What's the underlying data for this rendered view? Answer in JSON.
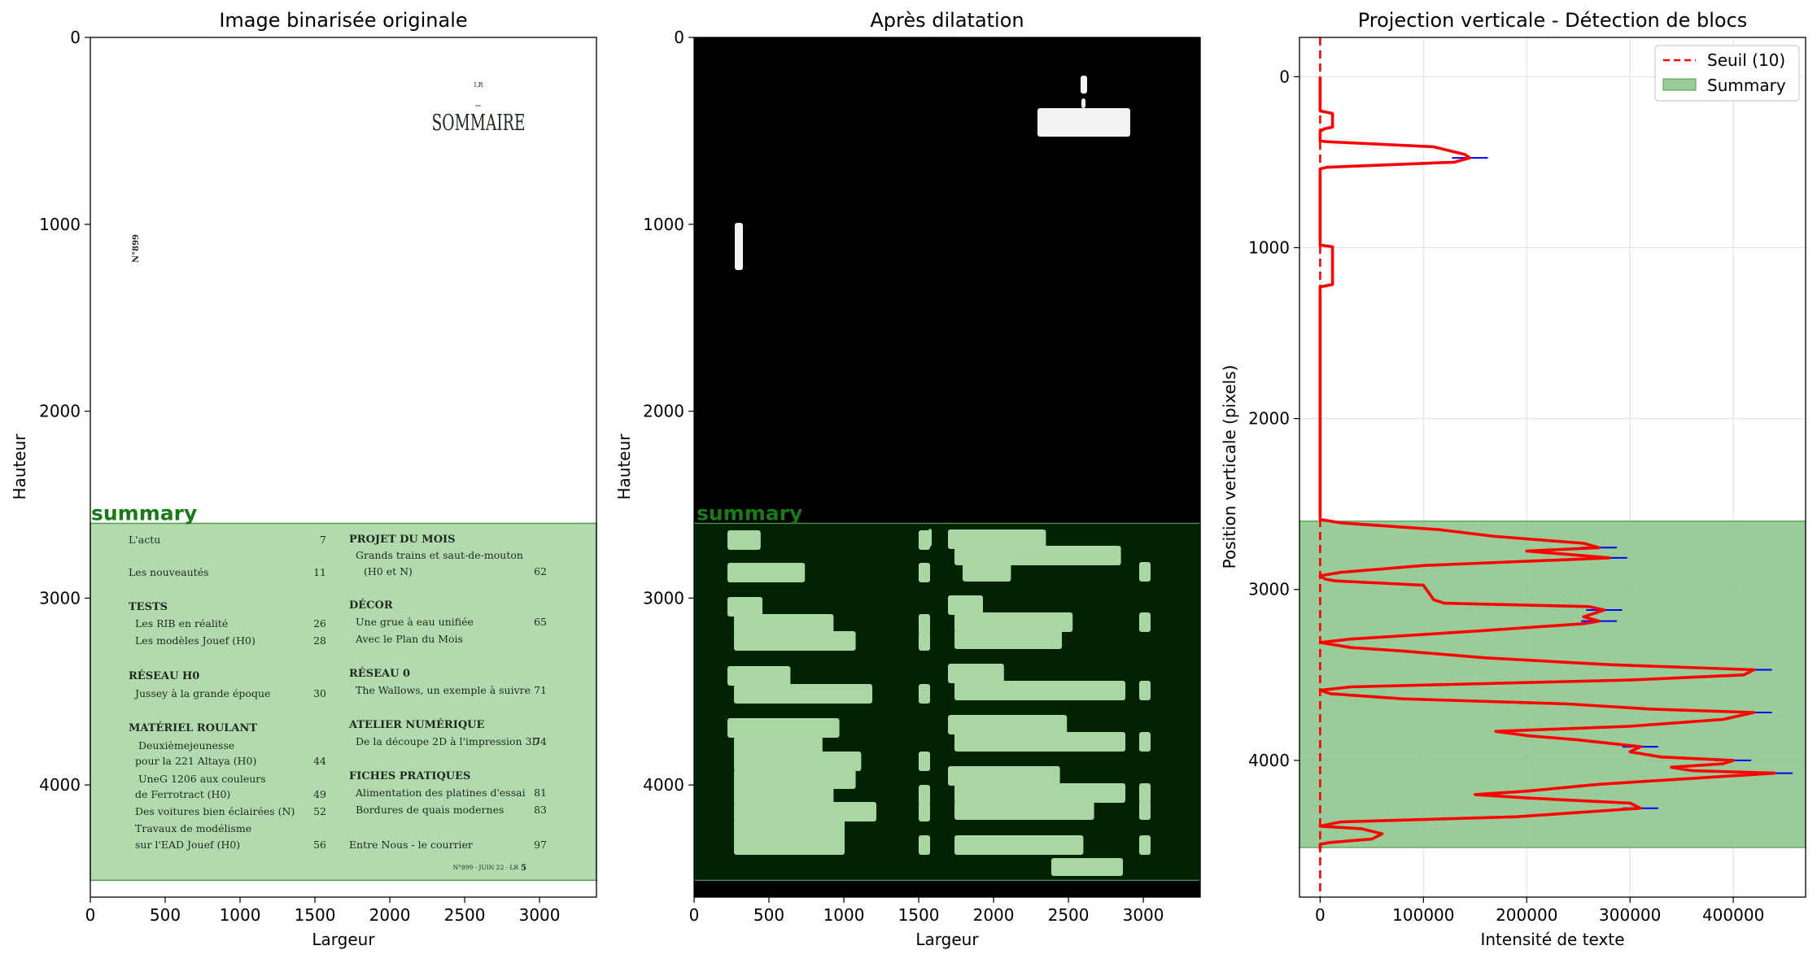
{
  "colors": {
    "summary_fill": "#9ccf97",
    "summary_edge": "#4f9e4f",
    "profile_line": "#ff0000",
    "threshold_line": "#ff0000",
    "tick_marks": "#0000ff",
    "dilated_bg": "#000000",
    "dilated_summary": "#002200",
    "summary_label": "#1a7a1a"
  },
  "chart_data": [
    {
      "type": "image",
      "title": "Image binarisée originale",
      "xlabel": "Largeur",
      "ylabel": "Hauteur",
      "xlim": [
        0,
        3380
      ],
      "ylim": [
        4600,
        0
      ],
      "xticks": [
        "0",
        "500",
        "1000",
        "1500",
        "2000",
        "2500",
        "3000"
      ],
      "yticks": [
        "0",
        "1000",
        "2000",
        "3000",
        "4000"
      ],
      "region": {
        "label": "summary",
        "y_start": 2600,
        "y_end": 4510
      },
      "doc_text": {
        "header_small": "LR",
        "heading": "SOMMAIRE",
        "side_number": "N°899",
        "footer": "N°899 · JUIN 22 · LR",
        "footer_page": "5",
        "left_column": [
          {
            "text": "L'actu",
            "page": "7",
            "bold": false
          },
          {
            "text": "Les nouveautés",
            "page": "11",
            "bold": false
          },
          {
            "text": "TESTS",
            "page": "",
            "bold": true
          },
          {
            "text": "Les RIB en réalité",
            "page": "26",
            "bold": false
          },
          {
            "text": "Les modèles Jouef (H0)",
            "page": "28",
            "bold": false
          },
          {
            "text": "RÉSEAU H0",
            "page": "",
            "bold": true
          },
          {
            "text": "Jussey à la grande époque",
            "page": "30",
            "bold": false
          },
          {
            "text": "MATÉRIEL ROULANT",
            "page": "",
            "bold": true
          },
          {
            "text": "Deuxièmejeunesse",
            "page": "",
            "bold": false
          },
          {
            "text": "pour la 221 Altaya (H0)",
            "page": "44",
            "bold": false
          },
          {
            "text": "UneG 1206 aux couleurs",
            "page": "",
            "bold": false
          },
          {
            "text": "de Ferrotract (H0)",
            "page": "49",
            "bold": false
          },
          {
            "text": "Des voitures bien éclairées (N)",
            "page": "52",
            "bold": false
          },
          {
            "text": "Travaux de modélisme",
            "page": "",
            "bold": false
          },
          {
            "text": "sur l'EAD Jouef (H0)",
            "page": "56",
            "bold": false
          }
        ],
        "right_column": [
          {
            "text": "PROJET DU MOIS",
            "page": "",
            "bold": true
          },
          {
            "text": "Grands trains et saut-de-mouton",
            "page": "",
            "bold": false
          },
          {
            "text": "(H0 et N)",
            "page": "62",
            "bold": false
          },
          {
            "text": "DÉCOR",
            "page": "",
            "bold": true
          },
          {
            "text": "Une grue à eau unifiée",
            "page": "65",
            "bold": false
          },
          {
            "text": "Avec le Plan du Mois",
            "page": "",
            "bold": false
          },
          {
            "text": "RÉSEAU 0",
            "page": "",
            "bold": true
          },
          {
            "text": "The Wallows, un exemple à suivre",
            "page": "71",
            "bold": false
          },
          {
            "text": "ATELIER NUMÉRIQUE",
            "page": "",
            "bold": true
          },
          {
            "text": "De la découpe 2D à l'impression 3D",
            "page": "74",
            "bold": false
          },
          {
            "text": "FICHES PRATIQUES",
            "page": "",
            "bold": true
          },
          {
            "text": "Alimentation des platines d'essai",
            "page": "81",
            "bold": false
          },
          {
            "text": "Bordures de quais modernes",
            "page": "83",
            "bold": false
          },
          {
            "text": "Entre Nous - le courrier",
            "page": "97",
            "bold": false
          }
        ]
      }
    },
    {
      "type": "image",
      "title": "Après dilatation",
      "xlabel": "Largeur",
      "ylabel": "Hauteur",
      "xlim": [
        0,
        3380
      ],
      "ylim": [
        4600,
        0
      ],
      "xticks": [
        "0",
        "500",
        "1000",
        "1500",
        "2000",
        "2500",
        "3000"
      ],
      "yticks": [
        "0",
        "1000",
        "2000",
        "3000",
        "4000"
      ],
      "region": {
        "label": "summary",
        "y_start": 2600,
        "y_end": 4510
      }
    },
    {
      "type": "line",
      "title": "Projection verticale - Détection de blocs",
      "xlabel": "Intensité de texte",
      "ylabel": "Position verticale (pixels)",
      "xlim": [
        -20000,
        470000
      ],
      "ylim": [
        4800,
        -230
      ],
      "xticks": [
        0,
        100000,
        200000,
        300000,
        400000
      ],
      "yticks": [
        0,
        1000,
        2000,
        3000,
        4000
      ],
      "grid": true,
      "legend": {
        "placement": "top-right",
        "entries": [
          "Seuil (10)",
          "Summary"
        ]
      },
      "threshold": {
        "name": "Seuil (10)",
        "value": 10
      },
      "region": {
        "name": "Summary",
        "y_start": 2600,
        "y_end": 4510
      },
      "series": [
        {
          "points": [
            [
              0,
              0
            ],
            [
              0,
              200
            ],
            [
              12000,
              215
            ],
            [
              12000,
              295
            ],
            [
              4000,
              305
            ],
            [
              0,
              320
            ],
            [
              0,
              375
            ],
            [
              6000,
              380
            ],
            [
              110000,
              410
            ],
            [
              140000,
              455
            ],
            [
              145000,
              475
            ],
            [
              130000,
              500
            ],
            [
              6000,
              530
            ],
            [
              0,
              540
            ],
            [
              0,
              985
            ],
            [
              12000,
              995
            ],
            [
              12000,
              1215
            ],
            [
              0,
              1230
            ],
            [
              0,
              2590
            ],
            [
              20000,
              2610
            ],
            [
              115000,
              2650
            ],
            [
              170000,
              2690
            ],
            [
              255000,
              2730
            ],
            [
              270000,
              2755
            ],
            [
              200000,
              2775
            ],
            [
              250000,
              2800
            ],
            [
              280000,
              2815
            ],
            [
              100000,
              2860
            ],
            [
              20000,
              2900
            ],
            [
              0,
              2920
            ],
            [
              5000,
              2940
            ],
            [
              15000,
              2950
            ],
            [
              100000,
              2975
            ],
            [
              110000,
              3060
            ],
            [
              120000,
              3080
            ],
            [
              260000,
              3100
            ],
            [
              275000,
              3120
            ],
            [
              255000,
              3160
            ],
            [
              270000,
              3185
            ],
            [
              255000,
              3200
            ],
            [
              160000,
              3240
            ],
            [
              30000,
              3290
            ],
            [
              0,
              3310
            ],
            [
              30000,
              3340
            ],
            [
              80000,
              3360
            ],
            [
              160000,
              3400
            ],
            [
              280000,
              3440
            ],
            [
              420000,
              3470
            ],
            [
              410000,
              3500
            ],
            [
              300000,
              3530
            ],
            [
              30000,
              3570
            ],
            [
              0,
              3590
            ],
            [
              10000,
              3610
            ],
            [
              80000,
              3640
            ],
            [
              240000,
              3670
            ],
            [
              320000,
              3700
            ],
            [
              420000,
              3720
            ],
            [
              390000,
              3760
            ],
            [
              300000,
              3800
            ],
            [
              170000,
              3830
            ],
            [
              200000,
              3855
            ],
            [
              250000,
              3880
            ],
            [
              310000,
              3920
            ],
            [
              300000,
              3950
            ],
            [
              330000,
              3980
            ],
            [
              400000,
              4000
            ],
            [
              390000,
              4020
            ],
            [
              340000,
              4040
            ],
            [
              360000,
              4060
            ],
            [
              440000,
              4075
            ],
            [
              400000,
              4090
            ],
            [
              270000,
              4140
            ],
            [
              200000,
              4180
            ],
            [
              150000,
              4200
            ],
            [
              200000,
              4220
            ],
            [
              300000,
              4250
            ],
            [
              310000,
              4280
            ],
            [
              190000,
              4330
            ],
            [
              20000,
              4360
            ],
            [
              0,
              4385
            ],
            [
              40000,
              4400
            ],
            [
              60000,
              4430
            ],
            [
              50000,
              4460
            ],
            [
              10000,
              4480
            ],
            [
              0,
              4490
            ],
            [
              0,
              4520
            ]
          ]
        }
      ]
    }
  ]
}
